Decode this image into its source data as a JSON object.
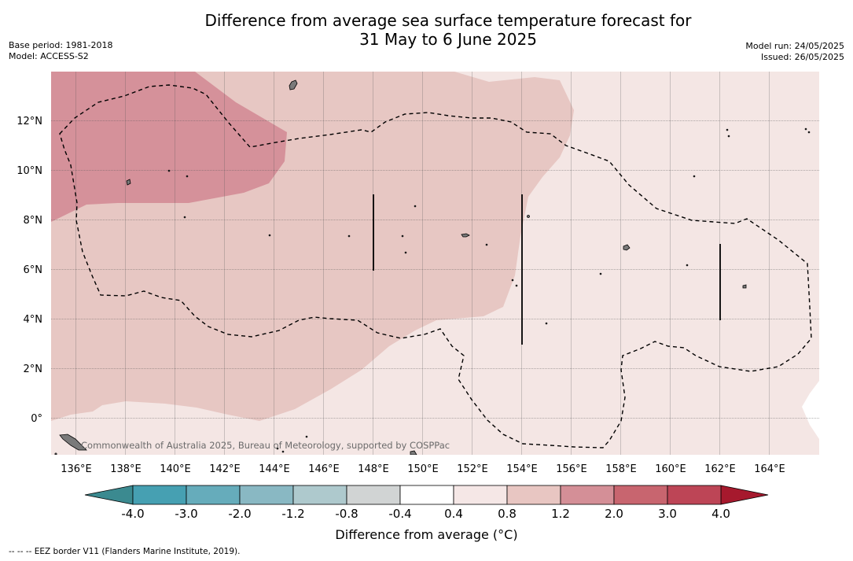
{
  "title": {
    "line1": "Difference from average sea surface temperature forecast for",
    "line2": "31 May to 6 June 2025"
  },
  "meta_left": {
    "base_period": "Base period: 1981-2018",
    "model": "Model: ACCESS-S2"
  },
  "meta_right": {
    "model_run": "Model run: 24/05/2025",
    "issued": "Issued: 26/05/2025"
  },
  "map": {
    "longitude_labels": [
      "136°E",
      "138°E",
      "140°E",
      "142°E",
      "144°E",
      "146°E",
      "148°E",
      "150°E",
      "152°E",
      "154°E",
      "156°E",
      "158°E",
      "160°E",
      "162°E",
      "164°E"
    ],
    "latitude_labels": [
      "12°N",
      "10°N",
      "8°N",
      "6°N",
      "4°N",
      "2°N",
      "0°"
    ],
    "credit": "Commonwealth of Australia 2025, Bureau of Meteorology, supported by COSPPac",
    "line_style": "dashed",
    "colors": {
      "band_0_4_0_8": "#f4e6e4",
      "band_0_8_1_2": "#e7c7c3",
      "band_1_2_2_0": "#d5919a",
      "land": "#7a7a7a",
      "grid": "#555555"
    }
  },
  "colorbar": {
    "labels": [
      "-4.0",
      "-3.0",
      "-2.0",
      "-1.2",
      "-0.8",
      "-0.4",
      "0.4",
      "0.8",
      "1.2",
      "2.0",
      "3.0",
      "4.0"
    ],
    "colors": [
      "#46a0b2",
      "#66acbb",
      "#89b8c3",
      "#aec9cd",
      "#d1d4d4",
      "#ffffff",
      "#f5e7e6",
      "#e8c6c2",
      "#d48f97",
      "#c8656f",
      "#bd4556"
    ],
    "low_extension_color": "#3b8a90",
    "high_extension_color": "#a6192d",
    "axis_label": "Difference from average (°C)"
  },
  "footnote": "--  --  -- EEZ border V11 (Flanders Marine Institute, 2019)."
}
